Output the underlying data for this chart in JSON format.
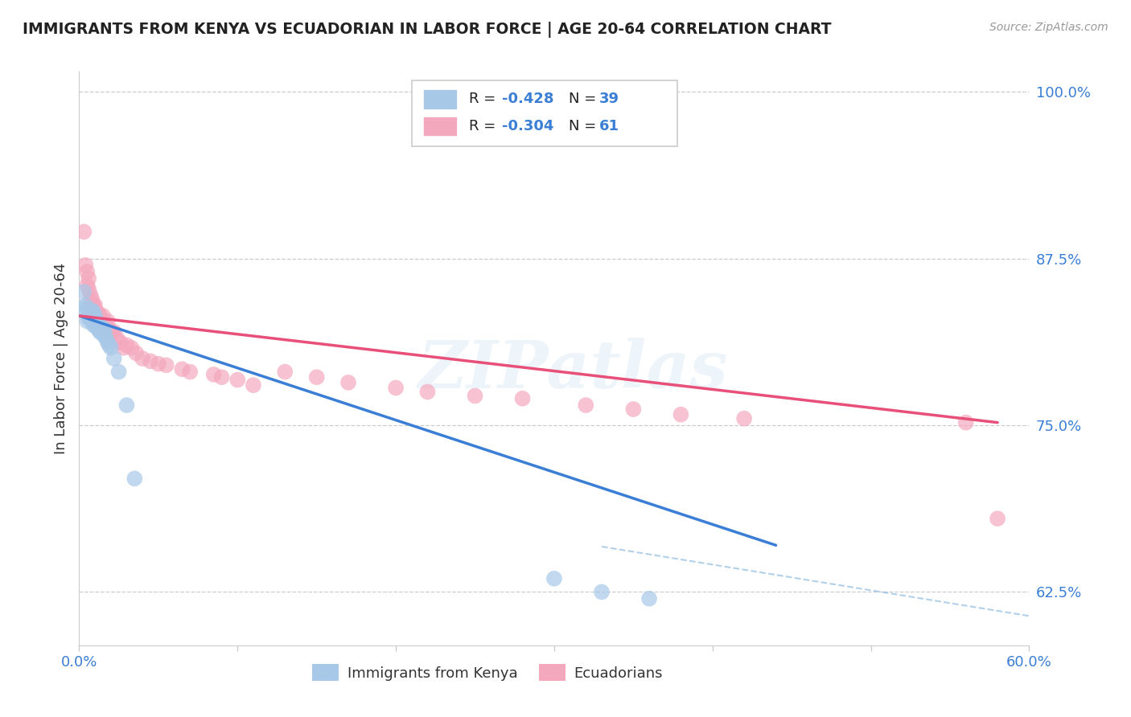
{
  "title": "IMMIGRANTS FROM KENYA VS ECUADORIAN IN LABOR FORCE | AGE 20-64 CORRELATION CHART",
  "source": "Source: ZipAtlas.com",
  "ylabel": "In Labor Force | Age 20-64",
  "xlim": [
    0.0,
    0.6
  ],
  "ylim": [
    0.585,
    1.015
  ],
  "yticks": [
    0.625,
    0.75,
    0.875,
    1.0
  ],
  "ytick_labels": [
    "62.5%",
    "75.0%",
    "87.5%",
    "100.0%"
  ],
  "xticks": [
    0.0,
    0.1,
    0.2,
    0.3,
    0.4,
    0.5,
    0.6
  ],
  "xtick_labels": [
    "0.0%",
    "",
    "",
    "",
    "",
    "",
    "60.0%"
  ],
  "kenya_color": "#a8c8e8",
  "ecuador_color": "#f4a8be",
  "kenya_line_color": "#3a7fd5",
  "ecuador_line_color": "#e8507a",
  "dashed_line_color": "#90bce0",
  "watermark": "ZIPatlas",
  "legend_text_color": "#3a7fd5",
  "kenya_scatter_x": [
    0.002,
    0.003,
    0.004,
    0.005,
    0.005,
    0.006,
    0.006,
    0.007,
    0.007,
    0.008,
    0.008,
    0.009,
    0.009,
    0.009,
    0.01,
    0.01,
    0.01,
    0.011,
    0.011,
    0.012,
    0.012,
    0.013,
    0.013,
    0.014,
    0.015,
    0.015,
    0.016,
    0.016,
    0.017,
    0.018,
    0.019,
    0.02,
    0.022,
    0.025,
    0.03,
    0.035,
    0.3,
    0.33,
    0.36
  ],
  "kenya_scatter_y": [
    0.838,
    0.85,
    0.84,
    0.837,
    0.828,
    0.836,
    0.83,
    0.835,
    0.83,
    0.83,
    0.836,
    0.825,
    0.83,
    0.835,
    0.825,
    0.828,
    0.832,
    0.824,
    0.828,
    0.822,
    0.826,
    0.82,
    0.824,
    0.82,
    0.818,
    0.822,
    0.818,
    0.822,
    0.815,
    0.812,
    0.81,
    0.808,
    0.8,
    0.79,
    0.765,
    0.71,
    0.635,
    0.625,
    0.62
  ],
  "ecuador_scatter_x": [
    0.003,
    0.004,
    0.005,
    0.005,
    0.006,
    0.006,
    0.007,
    0.007,
    0.008,
    0.008,
    0.008,
    0.009,
    0.009,
    0.009,
    0.01,
    0.01,
    0.01,
    0.011,
    0.011,
    0.012,
    0.012,
    0.013,
    0.014,
    0.015,
    0.015,
    0.016,
    0.017,
    0.018,
    0.019,
    0.02,
    0.021,
    0.022,
    0.024,
    0.026,
    0.028,
    0.03,
    0.033,
    0.036,
    0.04,
    0.045,
    0.05,
    0.055,
    0.065,
    0.07,
    0.085,
    0.09,
    0.1,
    0.11,
    0.13,
    0.15,
    0.17,
    0.2,
    0.22,
    0.25,
    0.28,
    0.32,
    0.35,
    0.38,
    0.42,
    0.56,
    0.58
  ],
  "ecuador_scatter_y": [
    0.895,
    0.87,
    0.865,
    0.855,
    0.86,
    0.852,
    0.848,
    0.84,
    0.842,
    0.836,
    0.845,
    0.835,
    0.84,
    0.838,
    0.832,
    0.836,
    0.84,
    0.83,
    0.835,
    0.83,
    0.834,
    0.832,
    0.828,
    0.826,
    0.832,
    0.826,
    0.822,
    0.828,
    0.822,
    0.82,
    0.818,
    0.82,
    0.815,
    0.812,
    0.808,
    0.81,
    0.808,
    0.804,
    0.8,
    0.798,
    0.796,
    0.795,
    0.792,
    0.79,
    0.788,
    0.786,
    0.784,
    0.78,
    0.79,
    0.786,
    0.782,
    0.778,
    0.775,
    0.772,
    0.77,
    0.765,
    0.762,
    0.758,
    0.755,
    0.752,
    0.68
  ],
  "kenya_line_x": [
    0.0,
    0.44
  ],
  "kenya_line_y": [
    0.832,
    0.66
  ],
  "ecuador_line_x": [
    0.0,
    0.58
  ],
  "ecuador_line_y": [
    0.832,
    0.752
  ],
  "dashed_line_x": [
    0.33,
    0.6
  ],
  "dashed_line_y": [
    0.659,
    0.607
  ]
}
